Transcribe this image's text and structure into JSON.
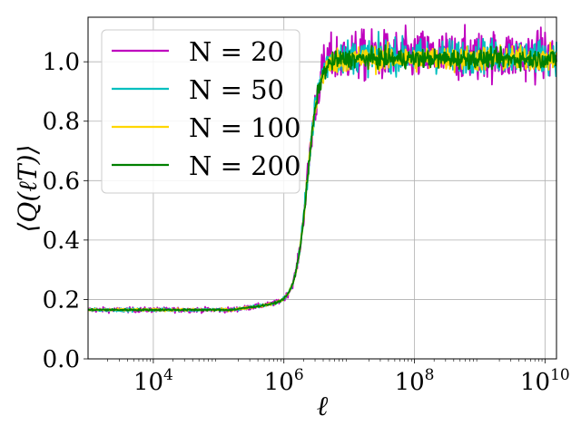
{
  "chart_data": {
    "type": "line",
    "xlabel": "ℓ",
    "ylabel": "⟨Q(ℓT)⟩",
    "xscale": "log",
    "xlim": [
      1000,
      15000000000
    ],
    "ylim": [
      0.0,
      1.15
    ],
    "xticks": [
      {
        "value": 10000,
        "base": "10",
        "exp": "4"
      },
      {
        "value": 1000000,
        "base": "10",
        "exp": "6"
      },
      {
        "value": 100000000,
        "base": "10",
        "exp": "8"
      },
      {
        "value": 10000000000,
        "base": "10",
        "exp": "10"
      }
    ],
    "yticks": [
      "0.0",
      "0.2",
      "0.4",
      "0.6",
      "0.8",
      "1.0"
    ],
    "grid": true,
    "legend_position": "upper-left",
    "series": [
      {
        "name": "N = 20",
        "color": "#bf00bf",
        "plateau_low": 0.165,
        "plateau_high": 1.02,
        "noise_low": 0.006,
        "noise_high": 0.06
      },
      {
        "name": "N = 50",
        "color": "#00bfbf",
        "plateau_low": 0.165,
        "plateau_high": 1.02,
        "noise_low": 0.004,
        "noise_high": 0.04
      },
      {
        "name": "N = 100",
        "color": "#ffd700",
        "plateau_low": 0.165,
        "plateau_high": 1.01,
        "noise_low": 0.003,
        "noise_high": 0.03
      },
      {
        "name": "N = 200",
        "color": "#008000",
        "plateau_low": 0.165,
        "plateau_high": 1.01,
        "noise_low": 0.002,
        "noise_high": 0.022
      }
    ],
    "transition_center": 2300000
  }
}
